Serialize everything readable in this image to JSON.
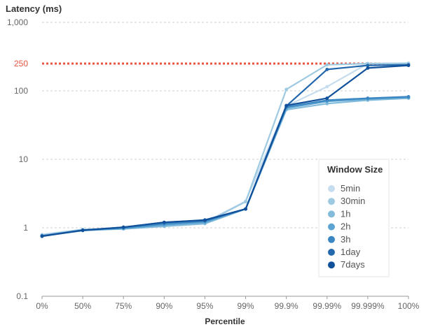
{
  "chart_data": {
    "type": "line",
    "ylabel": "Latency (ms)",
    "xlabel": "Percentile",
    "y_scale": "log",
    "ylim": [
      0.1,
      1000
    ],
    "y_ticks": [
      {
        "value": 0.1,
        "label": "0.1"
      },
      {
        "value": 1,
        "label": "1"
      },
      {
        "value": 10,
        "label": "10"
      },
      {
        "value": 100,
        "label": "100"
      },
      {
        "value": 1000,
        "label": "1,000"
      }
    ],
    "grid": "horizontal dashed",
    "categories": [
      "0%",
      "50%",
      "75%",
      "90%",
      "95%",
      "99%",
      "99.9%",
      "99.99%",
      "99.999%",
      "100%"
    ],
    "threshold": {
      "value": 250,
      "label": "250",
      "color": "#e8543f"
    },
    "legend": {
      "title": "Window Size",
      "position": "right"
    },
    "series": [
      {
        "name": "5min",
        "color": "#c6dcef",
        "values": [
          0.8,
          0.95,
          0.98,
          1.08,
          1.2,
          2.45,
          60,
          115,
          250,
          255
        ]
      },
      {
        "name": "30min",
        "color": "#9ecae1",
        "values": [
          0.78,
          0.94,
          0.97,
          1.06,
          1.18,
          2.4,
          105,
          240,
          250,
          250
        ]
      },
      {
        "name": "1h",
        "color": "#82bbdb",
        "values": [
          0.77,
          0.92,
          0.96,
          1.05,
          1.15,
          1.88,
          53,
          65,
          73,
          78
        ]
      },
      {
        "name": "2h",
        "color": "#5ea4d2",
        "values": [
          0.76,
          0.91,
          0.98,
          1.1,
          1.2,
          1.88,
          56,
          70,
          76,
          80
        ]
      },
      {
        "name": "3h",
        "color": "#3a86c2",
        "values": [
          0.76,
          0.92,
          1.0,
          1.15,
          1.25,
          1.88,
          58,
          73,
          78,
          82
        ]
      },
      {
        "name": "1day",
        "color": "#2367ad",
        "values": [
          0.76,
          0.92,
          1.02,
          1.2,
          1.28,
          1.88,
          60,
          205,
          235,
          240
        ]
      },
      {
        "name": "7days",
        "color": "#11509a",
        "values": [
          0.75,
          0.92,
          1.02,
          1.2,
          1.3,
          1.88,
          61,
          78,
          215,
          235
        ]
      }
    ]
  }
}
